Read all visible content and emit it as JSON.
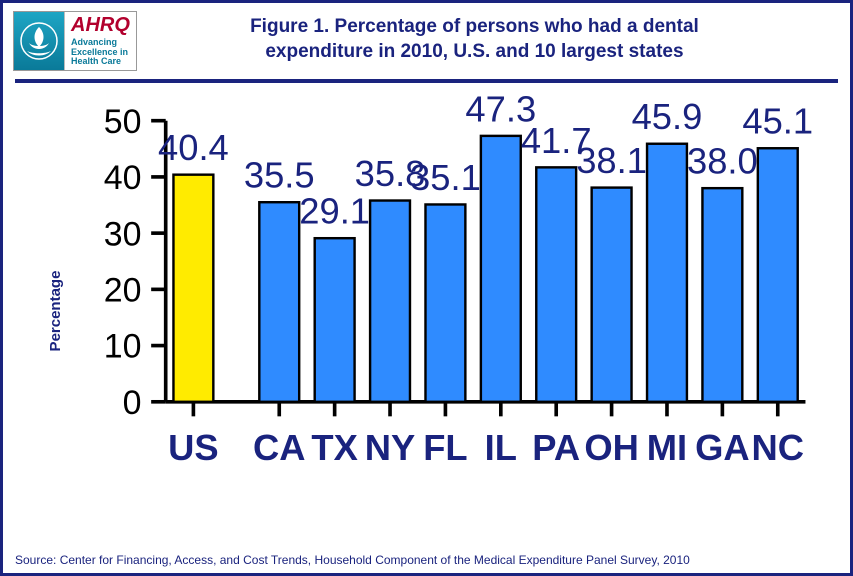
{
  "title_line1": "Figure 1. Percentage of persons who had a dental",
  "title_line2": "expenditure in 2010, U.S. and 10 largest states",
  "logo": {
    "brand": "AHRQ",
    "tagline1": "Advancing",
    "tagline2": "Excellence in",
    "tagline3": "Health Care"
  },
  "chart": {
    "type": "bar",
    "ylabel": "Percentage",
    "ylim": [
      0,
      50
    ],
    "ytick_step": 10,
    "yticks": [
      0,
      10,
      20,
      30,
      40,
      50
    ],
    "categories": [
      "US",
      "CA",
      "TX",
      "NY",
      "FL",
      "IL",
      "PA",
      "OH",
      "MI",
      "GA",
      "NC"
    ],
    "values": [
      40.4,
      35.5,
      29.1,
      35.8,
      35.1,
      47.3,
      41.7,
      38.1,
      45.9,
      38.0,
      45.1
    ],
    "value_labels": [
      "40.4",
      "35.5",
      "29.1",
      "35.8",
      "35.1",
      "47.3",
      "41.7",
      "38.1",
      "45.9",
      "38.0",
      "45.1"
    ],
    "bar_colors": [
      "#ffeb00",
      "#2f8bff",
      "#2f8bff",
      "#2f8bff",
      "#2f8bff",
      "#2f8bff",
      "#2f8bff",
      "#2f8bff",
      "#2f8bff",
      "#2f8bff",
      "#2f8bff"
    ],
    "bar_border": "#000000",
    "highlight_gap_after_index": 0,
    "bar_width": 0.72,
    "background_color": "#ffffff",
    "axis_color": "#000000",
    "label_color": "#1a237e",
    "title_color": "#1a237e",
    "title_fontsize": 19,
    "label_fontsize": 15,
    "tick_fontsize": 14
  },
  "source": "Source: Center for Financing, Access, and Cost Trends, Household Component of the Medical Expenditure Panel Survey, 2010"
}
